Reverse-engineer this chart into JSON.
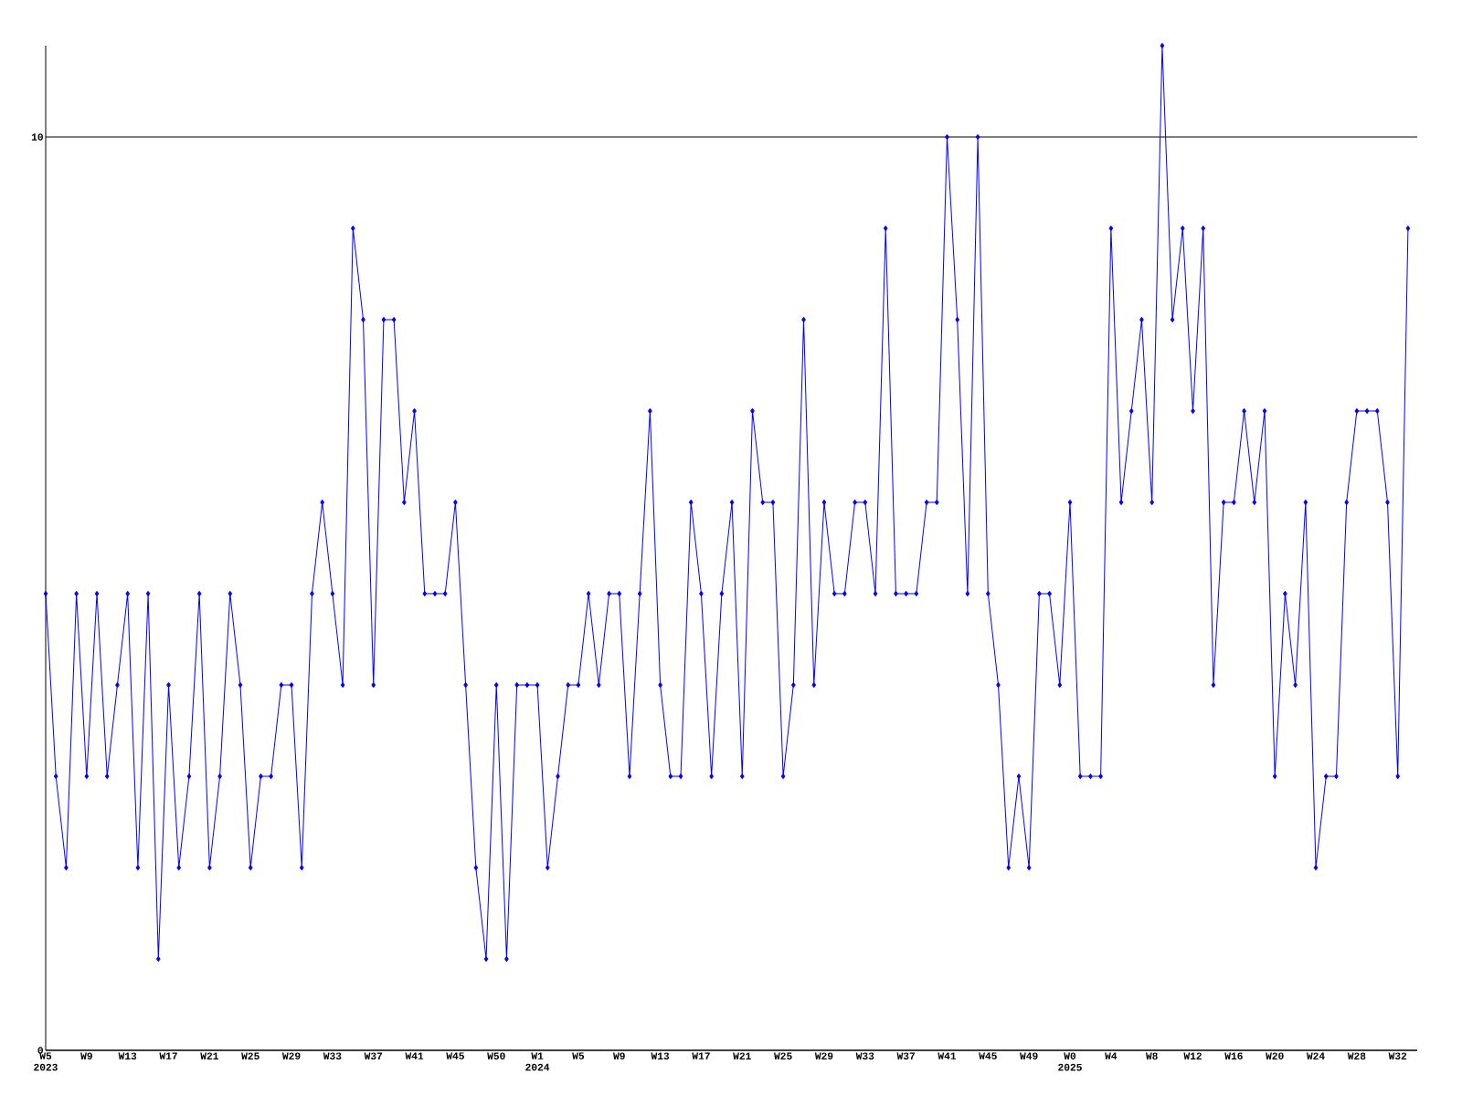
{
  "chart_data": {
    "type": "line",
    "categories": [
      "W5 2023",
      null,
      null,
      null,
      "W9",
      null,
      null,
      null,
      "W13",
      null,
      null,
      null,
      "W17",
      null,
      null,
      null,
      "W21",
      null,
      null,
      null,
      "W25",
      null,
      null,
      null,
      "W29",
      null,
      null,
      null,
      "W33",
      null,
      null,
      null,
      "W37",
      null,
      null,
      null,
      "W41",
      null,
      null,
      null,
      "W45",
      null,
      null,
      null,
      "W50",
      null,
      null,
      null,
      "W1 2024",
      null,
      null,
      null,
      "W5",
      null,
      null,
      null,
      "W9",
      null,
      null,
      null,
      "W13",
      null,
      null,
      null,
      "W17",
      null,
      null,
      null,
      "W21",
      null,
      null,
      null,
      "W25",
      null,
      null,
      null,
      "W29",
      null,
      null,
      null,
      "W33",
      null,
      null,
      null,
      "W37",
      null,
      null,
      null,
      "W41",
      null,
      null,
      null,
      "W45",
      null,
      null,
      null,
      "W49",
      null,
      null,
      null,
      "W0 2025",
      null,
      null,
      null,
      "W4",
      null,
      null,
      null,
      "W8",
      null,
      null,
      null,
      "W12",
      null,
      null,
      null,
      "W16",
      null,
      null,
      null,
      "W20",
      null,
      null,
      null,
      "W24",
      null,
      null,
      null,
      "W28",
      null,
      null,
      null,
      "W32",
      null
    ],
    "values": [
      5,
      3,
      2,
      5,
      3,
      5,
      3,
      4,
      5,
      2,
      5,
      1,
      4,
      2,
      3,
      5,
      2,
      3,
      5,
      4,
      2,
      3,
      3,
      4,
      4,
      2,
      5,
      6,
      5,
      4,
      9,
      8,
      4,
      8,
      8,
      6,
      7,
      5,
      5,
      5,
      6,
      4,
      2,
      1,
      4,
      1,
      4,
      4,
      4,
      2,
      3,
      4,
      4,
      5,
      4,
      5,
      5,
      3,
      5,
      7,
      4,
      3,
      3,
      6,
      5,
      3,
      5,
      6,
      3,
      7,
      6,
      6,
      3,
      4,
      8,
      4,
      6,
      5,
      5,
      6,
      6,
      5,
      9,
      5,
      5,
      5,
      6,
      6,
      10,
      8,
      5,
      10,
      5,
      4,
      2,
      3,
      2,
      5,
      5,
      4,
      6,
      3,
      3,
      3,
      9,
      6,
      7,
      8,
      6,
      11,
      8,
      9,
      7,
      9,
      4,
      6,
      6,
      7,
      6,
      7,
      3,
      5,
      4,
      6,
      2,
      3,
      3,
      6,
      7,
      7,
      7,
      6,
      3,
      9
    ],
    "color": "#0000ff",
    "marker": "diamond",
    "line_style": "solid",
    "ylim": [
      0,
      11
    ],
    "yticks": [
      0,
      10
    ],
    "grid": "y"
  }
}
